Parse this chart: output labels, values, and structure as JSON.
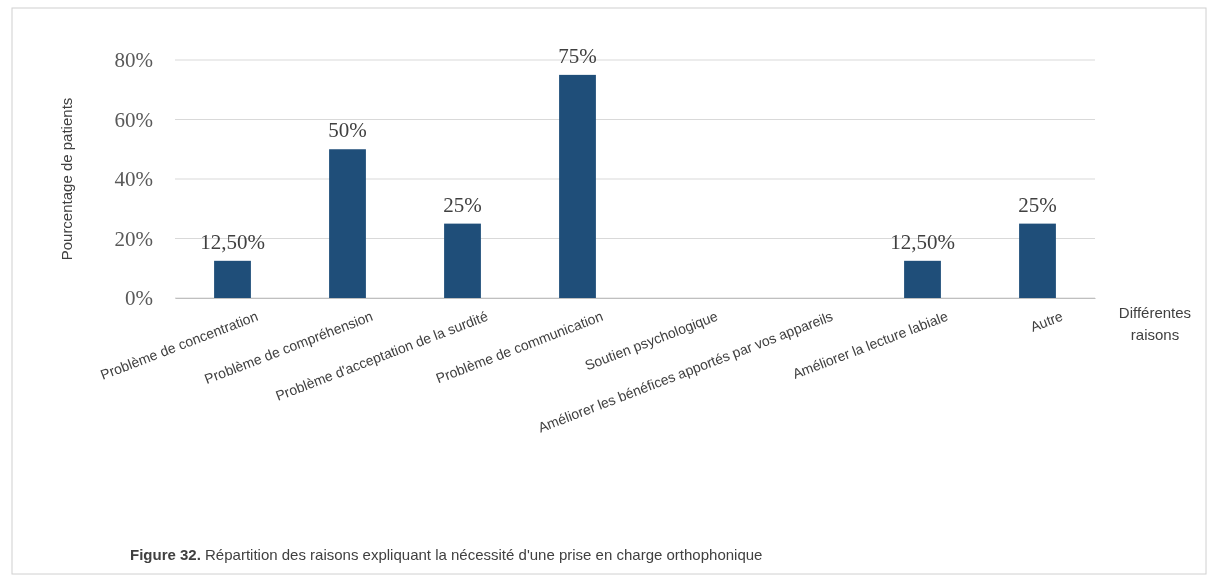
{
  "chart_data": {
    "type": "bar",
    "categories": [
      "Problème de concentration",
      "Problème de compréhension",
      "Problème d'acceptation de la surdité",
      "Problème de communication",
      "Soutien psychologique",
      "Améliorer les bénéfices apportés par vos appareils",
      "Améliorer la lecture labiale",
      "Autre"
    ],
    "values": [
      12.5,
      50,
      25,
      75,
      0,
      0,
      12.5,
      25
    ],
    "value_labels": [
      "12,50%",
      "50%",
      "25%",
      "75%",
      null,
      null,
      "12,50%",
      "25%"
    ],
    "color": "#1f4e79",
    "ylim": [
      0,
      80
    ],
    "yticks": [
      {
        "value": 0,
        "label": "0%"
      },
      {
        "value": 20,
        "label": "20%"
      },
      {
        "value": 40,
        "label": "40%"
      },
      {
        "value": 60,
        "label": "60%"
      },
      {
        "value": 80,
        "label": "80%"
      }
    ],
    "grid": "y",
    "xlabel": "Différentes raisons",
    "ylabel": "Pourcentage de patients",
    "annotations": [
      "Figure 32. Répartition des raisons expliquant la nécessité d'une prise en charge orthophonique"
    ]
  }
}
